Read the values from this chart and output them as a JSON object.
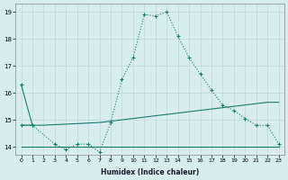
{
  "line1_x": [
    0,
    1
  ],
  "line1_y": [
    16.3,
    14.8
  ],
  "line2_x": [
    0,
    1,
    3,
    4,
    5,
    6,
    7,
    8,
    9,
    10,
    11,
    12,
    13,
    14,
    15,
    16,
    17,
    18,
    19,
    20,
    21,
    22,
    23
  ],
  "line2_y": [
    14.8,
    14.8,
    14.1,
    13.9,
    14.1,
    14.1,
    13.8,
    14.9,
    16.5,
    17.3,
    18.9,
    18.85,
    19.0,
    18.1,
    17.3,
    16.7,
    16.1,
    15.55,
    15.35,
    15.05,
    14.8,
    14.8,
    14.1
  ],
  "line3_x": [
    0,
    1,
    2,
    7,
    8,
    9,
    10,
    11,
    12,
    13,
    14,
    15,
    16,
    17,
    18,
    19,
    20,
    21,
    22,
    23
  ],
  "line3_y": [
    14.8,
    14.8,
    14.8,
    14.9,
    14.95,
    15.0,
    15.05,
    15.1,
    15.15,
    15.2,
    15.25,
    15.3,
    15.35,
    15.4,
    15.45,
    15.5,
    15.55,
    15.6,
    15.65,
    15.65
  ],
  "line4_x": [
    0,
    23
  ],
  "line4_y": [
    14.0,
    14.0
  ],
  "bg_color": "#d8eeee",
  "grid_color": "#c0d8d8",
  "line_color": "#1a7a6e",
  "xlabel": "Humidex (Indice chaleur)",
  "ylim": [
    13.7,
    19.3
  ],
  "xlim": [
    -0.5,
    23.5
  ],
  "xticks": [
    0,
    1,
    2,
    3,
    4,
    5,
    6,
    7,
    8,
    9,
    10,
    11,
    12,
    13,
    14,
    15,
    16,
    17,
    18,
    19,
    20,
    21,
    22,
    23
  ],
  "yticks": [
    14,
    15,
    16,
    17,
    18,
    19
  ]
}
